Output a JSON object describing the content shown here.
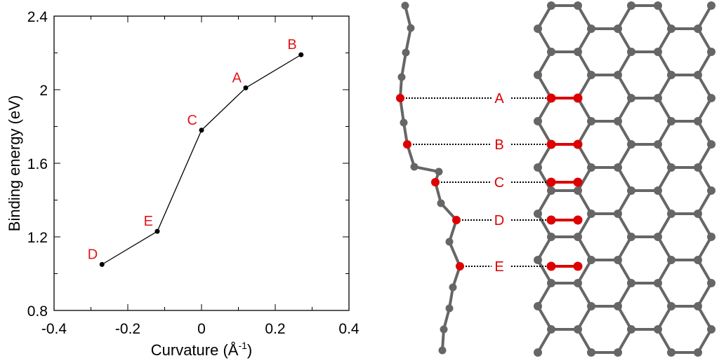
{
  "chart_data": {
    "type": "line",
    "title": "",
    "xlabel": "Curvature (Å",
    "xlabel_sup": "-1",
    "xlabel_close": ")",
    "ylabel": "Binding energy (eV)",
    "xlim": [
      -0.4,
      0.4
    ],
    "ylim": [
      0.8,
      2.4
    ],
    "xticks": [
      "-0.4",
      "-0.2",
      "0",
      "0.2",
      "0.4"
    ],
    "xtick_values": [
      -0.4,
      -0.2,
      0,
      0.2,
      0.4
    ],
    "yticks": [
      "0.8",
      "1.2",
      "1.6",
      "2",
      "2.4"
    ],
    "ytick_values": [
      0.8,
      1.2,
      1.6,
      2.0,
      2.4
    ],
    "grid": false,
    "series": [
      {
        "name": "binding energy",
        "color": "#000000",
        "points": [
          {
            "label": "D",
            "x": -0.27,
            "y": 1.05
          },
          {
            "label": "E",
            "x": -0.12,
            "y": 1.23
          },
          {
            "label": "C",
            "x": 0.0,
            "y": 1.78
          },
          {
            "label": "A",
            "x": 0.12,
            "y": 2.01
          },
          {
            "label": "B",
            "x": 0.27,
            "y": 2.19
          }
        ]
      }
    ],
    "label_color": "#e0161b"
  },
  "diagram": {
    "sites": [
      "A",
      "B",
      "C",
      "D",
      "E"
    ],
    "atom_color": "#666666",
    "highlight_color": "#dd0000"
  }
}
